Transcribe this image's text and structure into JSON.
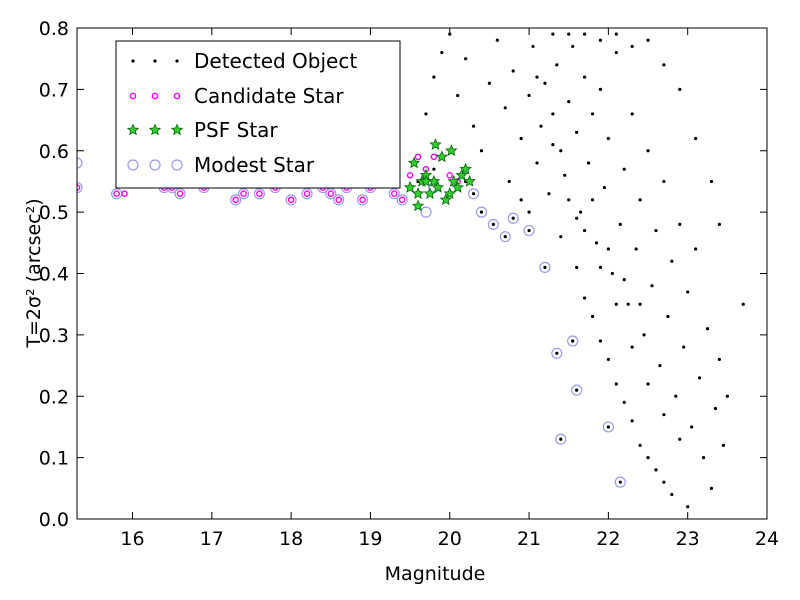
{
  "chart_data": {
    "type": "scatter",
    "xlabel": "Magnitude",
    "ylabel": "T=2σ² (arcsec²)",
    "xlim": [
      15.3,
      24.0
    ],
    "ylim": [
      0.0,
      0.8
    ],
    "xticks": [
      16,
      17,
      18,
      19,
      20,
      21,
      22,
      23,
      24
    ],
    "yticks": [
      0.0,
      0.1,
      0.2,
      0.3,
      0.4,
      0.5,
      0.6,
      0.7,
      0.8
    ],
    "legend": {
      "placement": "top-left",
      "entries": [
        {
          "name": "Detected Object",
          "marker": "dot",
          "color": "#000000"
        },
        {
          "name": "Candidate Star",
          "marker": "ring",
          "color": "#ff00ff"
        },
        {
          "name": "PSF Star",
          "marker": "star",
          "color": "#00aa00"
        },
        {
          "name": "Modest Star",
          "marker": "circle",
          "color": "#9999ee"
        }
      ]
    },
    "series": [
      {
        "name": "Detected Object",
        "points": [
          [
            15.3,
            0.54
          ],
          [
            15.8,
            0.53
          ],
          [
            16.4,
            0.54
          ],
          [
            16.9,
            0.54
          ],
          [
            17.3,
            0.52
          ],
          [
            17.8,
            0.54
          ],
          [
            18.2,
            0.53
          ],
          [
            18.7,
            0.54
          ],
          [
            19.1,
            0.55
          ],
          [
            19.3,
            0.53
          ],
          [
            19.6,
            0.55
          ],
          [
            19.8,
            0.57
          ],
          [
            20.0,
            0.56
          ],
          [
            20.2,
            0.55
          ],
          [
            20.3,
            0.53
          ],
          [
            20.4,
            0.5
          ],
          [
            20.55,
            0.48
          ],
          [
            20.7,
            0.46
          ],
          [
            20.8,
            0.49
          ],
          [
            21.0,
            0.47
          ],
          [
            21.2,
            0.41
          ],
          [
            21.35,
            0.27
          ],
          [
            21.4,
            0.13
          ],
          [
            21.55,
            0.29
          ],
          [
            21.6,
            0.21
          ],
          [
            22.0,
            0.15
          ],
          [
            22.15,
            0.06
          ],
          [
            19.7,
            0.66
          ],
          [
            19.8,
            0.72
          ],
          [
            19.9,
            0.76
          ],
          [
            20.0,
            0.79
          ],
          [
            20.1,
            0.69
          ],
          [
            20.2,
            0.75
          ],
          [
            20.3,
            0.64
          ],
          [
            20.4,
            0.6
          ],
          [
            20.5,
            0.71
          ],
          [
            20.6,
            0.78
          ],
          [
            20.7,
            0.67
          ],
          [
            20.75,
            0.55
          ],
          [
            20.8,
            0.73
          ],
          [
            20.9,
            0.62
          ],
          [
            21.0,
            0.69
          ],
          [
            21.05,
            0.77
          ],
          [
            21.1,
            0.58
          ],
          [
            21.15,
            0.64
          ],
          [
            21.2,
            0.71
          ],
          [
            21.25,
            0.53
          ],
          [
            21.3,
            0.66
          ],
          [
            21.35,
            0.74
          ],
          [
            21.4,
            0.6
          ],
          [
            21.45,
            0.56
          ],
          [
            21.5,
            0.68
          ],
          [
            21.55,
            0.77
          ],
          [
            21.6,
            0.63
          ],
          [
            21.65,
            0.5
          ],
          [
            21.7,
            0.72
          ],
          [
            21.75,
            0.58
          ],
          [
            21.8,
            0.66
          ],
          [
            21.85,
            0.45
          ],
          [
            21.9,
            0.7
          ],
          [
            21.95,
            0.54
          ],
          [
            22.0,
            0.62
          ],
          [
            22.05,
            0.4
          ],
          [
            22.1,
            0.76
          ],
          [
            22.15,
            0.48
          ],
          [
            22.2,
            0.57
          ],
          [
            22.25,
            0.35
          ],
          [
            22.3,
            0.66
          ],
          [
            22.35,
            0.44
          ],
          [
            22.4,
            0.52
          ],
          [
            22.45,
            0.3
          ],
          [
            22.5,
            0.6
          ],
          [
            22.55,
            0.38
          ],
          [
            22.6,
            0.47
          ],
          [
            22.65,
            0.25
          ],
          [
            22.7,
            0.55
          ],
          [
            22.75,
            0.33
          ],
          [
            22.8,
            0.42
          ],
          [
            22.85,
            0.2
          ],
          [
            22.9,
            0.48
          ],
          [
            22.95,
            0.28
          ],
          [
            23.0,
            0.37
          ],
          [
            23.05,
            0.15
          ],
          [
            23.1,
            0.44
          ],
          [
            23.15,
            0.23
          ],
          [
            23.2,
            0.1
          ],
          [
            23.25,
            0.31
          ],
          [
            23.3,
            0.05
          ],
          [
            23.35,
            0.18
          ],
          [
            23.4,
            0.26
          ],
          [
            23.45,
            0.12
          ],
          [
            23.5,
            0.2
          ],
          [
            23.7,
            0.35
          ],
          [
            21.6,
            0.41
          ],
          [
            21.8,
            0.33
          ],
          [
            22.0,
            0.26
          ],
          [
            22.2,
            0.19
          ],
          [
            22.4,
            0.12
          ],
          [
            22.6,
            0.08
          ],
          [
            22.8,
            0.04
          ],
          [
            23.0,
            0.02
          ],
          [
            21.7,
            0.36
          ],
          [
            21.9,
            0.29
          ],
          [
            22.1,
            0.22
          ],
          [
            22.3,
            0.16
          ],
          [
            22.5,
            0.1
          ],
          [
            22.7,
            0.06
          ],
          [
            21.3,
            0.79
          ],
          [
            21.5,
            0.79
          ],
          [
            21.7,
            0.79
          ],
          [
            21.9,
            0.78
          ],
          [
            22.1,
            0.79
          ],
          [
            22.3,
            0.77
          ],
          [
            22.5,
            0.78
          ],
          [
            22.7,
            0.74
          ],
          [
            22.9,
            0.7
          ],
          [
            23.1,
            0.62
          ],
          [
            23.3,
            0.55
          ],
          [
            23.4,
            0.48
          ],
          [
            20.9,
            0.52
          ],
          [
            21.0,
            0.5
          ],
          [
            21.4,
            0.46
          ],
          [
            21.6,
            0.49
          ],
          [
            21.8,
            0.52
          ],
          [
            22.0,
            0.44
          ],
          [
            22.2,
            0.39
          ],
          [
            22.4,
            0.35
          ],
          [
            21.1,
            0.72
          ],
          [
            21.3,
            0.61
          ],
          [
            21.5,
            0.52
          ],
          [
            21.7,
            0.47
          ],
          [
            21.9,
            0.41
          ],
          [
            22.1,
            0.35
          ],
          [
            22.3,
            0.28
          ],
          [
            22.5,
            0.22
          ],
          [
            22.7,
            0.17
          ],
          [
            22.9,
            0.13
          ]
        ]
      },
      {
        "name": "Candidate Star",
        "points": [
          [
            15.3,
            0.54
          ],
          [
            15.8,
            0.53
          ],
          [
            15.9,
            0.53
          ],
          [
            16.4,
            0.54
          ],
          [
            16.5,
            0.54
          ],
          [
            16.6,
            0.53
          ],
          [
            16.9,
            0.54
          ],
          [
            17.3,
            0.52
          ],
          [
            17.4,
            0.53
          ],
          [
            17.6,
            0.53
          ],
          [
            17.8,
            0.54
          ],
          [
            18.0,
            0.52
          ],
          [
            18.2,
            0.53
          ],
          [
            18.4,
            0.54
          ],
          [
            18.5,
            0.53
          ],
          [
            18.6,
            0.52
          ],
          [
            18.7,
            0.54
          ],
          [
            18.9,
            0.52
          ],
          [
            19.0,
            0.54
          ],
          [
            19.1,
            0.55
          ],
          [
            19.2,
            0.58
          ],
          [
            19.3,
            0.53
          ],
          [
            19.4,
            0.52
          ],
          [
            19.5,
            0.56
          ],
          [
            19.6,
            0.59
          ],
          [
            19.7,
            0.57
          ],
          [
            19.8,
            0.59
          ],
          [
            20.0,
            0.56
          ],
          [
            20.1,
            0.55
          ]
        ]
      },
      {
        "name": "PSF Star",
        "points": [
          [
            19.5,
            0.54
          ],
          [
            19.55,
            0.58
          ],
          [
            19.6,
            0.51
          ],
          [
            19.65,
            0.55
          ],
          [
            19.7,
            0.56
          ],
          [
            19.75,
            0.53
          ],
          [
            19.8,
            0.55
          ],
          [
            19.82,
            0.61
          ],
          [
            19.85,
            0.54
          ],
          [
            19.9,
            0.59
          ],
          [
            19.95,
            0.52
          ],
          [
            20.0,
            0.53
          ],
          [
            20.02,
            0.6
          ],
          [
            20.05,
            0.55
          ],
          [
            20.1,
            0.54
          ],
          [
            20.15,
            0.56
          ],
          [
            20.2,
            0.57
          ],
          [
            20.25,
            0.55
          ],
          [
            19.6,
            0.53
          ],
          [
            19.7,
            0.55
          ]
        ]
      },
      {
        "name": "Modest Star",
        "points": [
          [
            15.3,
            0.58
          ],
          [
            15.3,
            0.54
          ],
          [
            15.8,
            0.53
          ],
          [
            15.9,
            0.58
          ],
          [
            16.1,
            0.57
          ],
          [
            16.4,
            0.54
          ],
          [
            16.5,
            0.54
          ],
          [
            16.6,
            0.53
          ],
          [
            16.9,
            0.54
          ],
          [
            17.0,
            0.56
          ],
          [
            17.3,
            0.52
          ],
          [
            17.4,
            0.53
          ],
          [
            17.6,
            0.53
          ],
          [
            17.8,
            0.54
          ],
          [
            18.0,
            0.52
          ],
          [
            18.2,
            0.53
          ],
          [
            18.4,
            0.54
          ],
          [
            18.5,
            0.53
          ],
          [
            18.6,
            0.52
          ],
          [
            18.7,
            0.54
          ],
          [
            18.9,
            0.52
          ],
          [
            19.0,
            0.54
          ],
          [
            19.1,
            0.55
          ],
          [
            19.2,
            0.58
          ],
          [
            19.3,
            0.53
          ],
          [
            19.4,
            0.52
          ],
          [
            19.7,
            0.5
          ],
          [
            19.8,
            0.54
          ],
          [
            20.3,
            0.53
          ],
          [
            20.4,
            0.5
          ],
          [
            20.55,
            0.48
          ],
          [
            20.7,
            0.46
          ],
          [
            20.8,
            0.49
          ],
          [
            21.0,
            0.47
          ],
          [
            21.2,
            0.41
          ],
          [
            21.35,
            0.27
          ],
          [
            21.4,
            0.13
          ],
          [
            21.55,
            0.29
          ],
          [
            21.6,
            0.21
          ],
          [
            22.0,
            0.15
          ],
          [
            22.15,
            0.06
          ]
        ]
      }
    ]
  }
}
